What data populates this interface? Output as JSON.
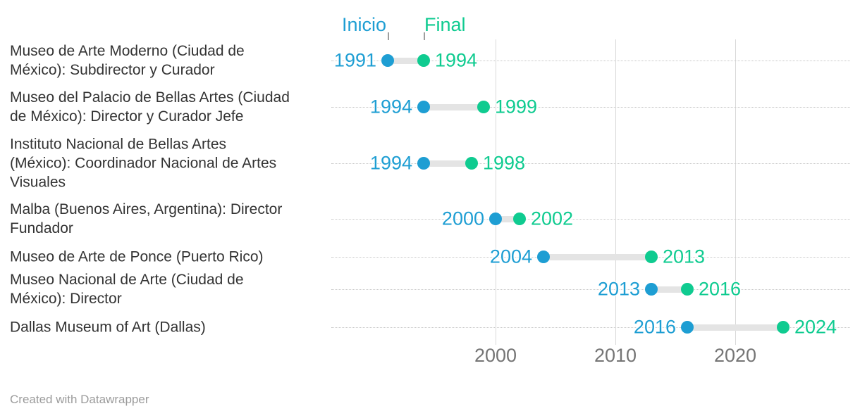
{
  "legend": {
    "start_label": "Inicio",
    "end_label": "Final"
  },
  "footer": {
    "credit": "Created with Datawrapper"
  },
  "colors": {
    "start": "#1E9ED3",
    "end": "#0FCB90",
    "connector": "#E4E4E4",
    "vertical_grid": "#D8D8D8",
    "row_guide": "#C7C7C7",
    "category_text": "#333333",
    "axis_text": "#757575",
    "footer_text": "#9B9B9B"
  },
  "chart_data": {
    "type": "dumbbell",
    "title": "",
    "categories": [
      "Museo de Arte Moderno (Ciudad de\nMéxico): Subdirector y Curador",
      "Museo del Palacio de Bellas Artes (Ciudad\nde México): Director y Curador Jefe",
      "Instituto Nacional de Bellas Artes\n(México): Coordinador Nacional de Artes\nVisuales",
      "Malba (Buenos Aires, Argentina): Director\nFundador",
      "Museo de Arte de Ponce (Puerto Rico)",
      "Museo Nacional de Arte (Ciudad de\nMéxico): Director",
      "Dallas Museum of Art (Dallas)"
    ],
    "series": [
      {
        "name": "Inicio",
        "color": "#1E9ED3",
        "values": [
          1991,
          1994,
          1994,
          2000,
          2004,
          2013,
          2016
        ]
      },
      {
        "name": "Final",
        "color": "#0FCB90",
        "values": [
          1994,
          1999,
          1998,
          2002,
          2013,
          2016,
          2024
        ]
      }
    ],
    "x_ticks": [
      2000,
      2010,
      2020
    ],
    "xlim": [
      1986,
      2030
    ],
    "grid": {
      "vertical_decade_lines": true,
      "horizontal_dotted_row_guides": true
    },
    "legend_position": "top"
  }
}
